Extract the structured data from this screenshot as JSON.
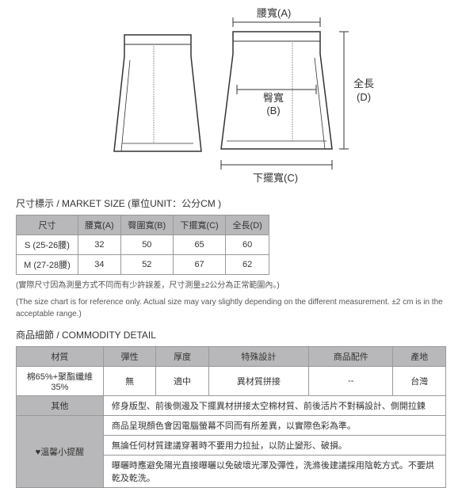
{
  "diagram": {
    "waist": "腰寬(A)",
    "hip": "臀寬\n(B)",
    "hem": "下擺寬(C)",
    "length": "全長\n(D)"
  },
  "sizeSection": {
    "title": "尺寸標示 / MARKET SIZE (單位UNIT：公分CM )",
    "cols": [
      "尺寸",
      "腰寬(A)",
      "臀圍寬(B)",
      "下擺寬(C)",
      "全長(D)"
    ],
    "rows": [
      [
        "S (25-26腰)",
        "32",
        "50",
        "65",
        "60"
      ],
      [
        "M (27-28腰)",
        "34",
        "52",
        "67",
        "62"
      ]
    ],
    "noteZh": "(實際尺寸因為測量方式不同而有少許誤差，尺寸測量±2公分為正常範圍內。)",
    "noteEn": "(The size chart is for reference only. Actual size may vary slightly depending on the different measurement. ±2 cm is in the acceptable range.)"
  },
  "detailSection": {
    "title": "商品細節 / COMMODITY DETAIL",
    "row1Hdr": [
      "材質",
      "彈性",
      "厚度",
      "特殊設計",
      "商品配件",
      "產地"
    ],
    "row1": [
      "棉65%+聚酯纖維35%",
      "無",
      "適中",
      "異材質拼接",
      "--",
      "台灣"
    ],
    "row2Hdr": "其他",
    "row2Val": "修身版型、前後側邊及下擺異材拼接太空棉材質、前後活片不對稱設計、側開拉鍊",
    "row3Hdr": "♥溫馨小提醒",
    "row3Lines": [
      "商品呈現顏色會因電腦螢幕不同而有所差異，以實際色彩為準。",
      "無論任何材質建議穿著時不要用力拉扯，以防止變形、破損。",
      "曝曬時應避免陽光直接曝曬以免破壞光澤及彈性，洗滌後建議採用陰乾方式。不要烘乾及乾洗。"
    ]
  },
  "colors": {
    "border": "#999",
    "headerBg": "#b8b8ba",
    "line": "#333"
  }
}
